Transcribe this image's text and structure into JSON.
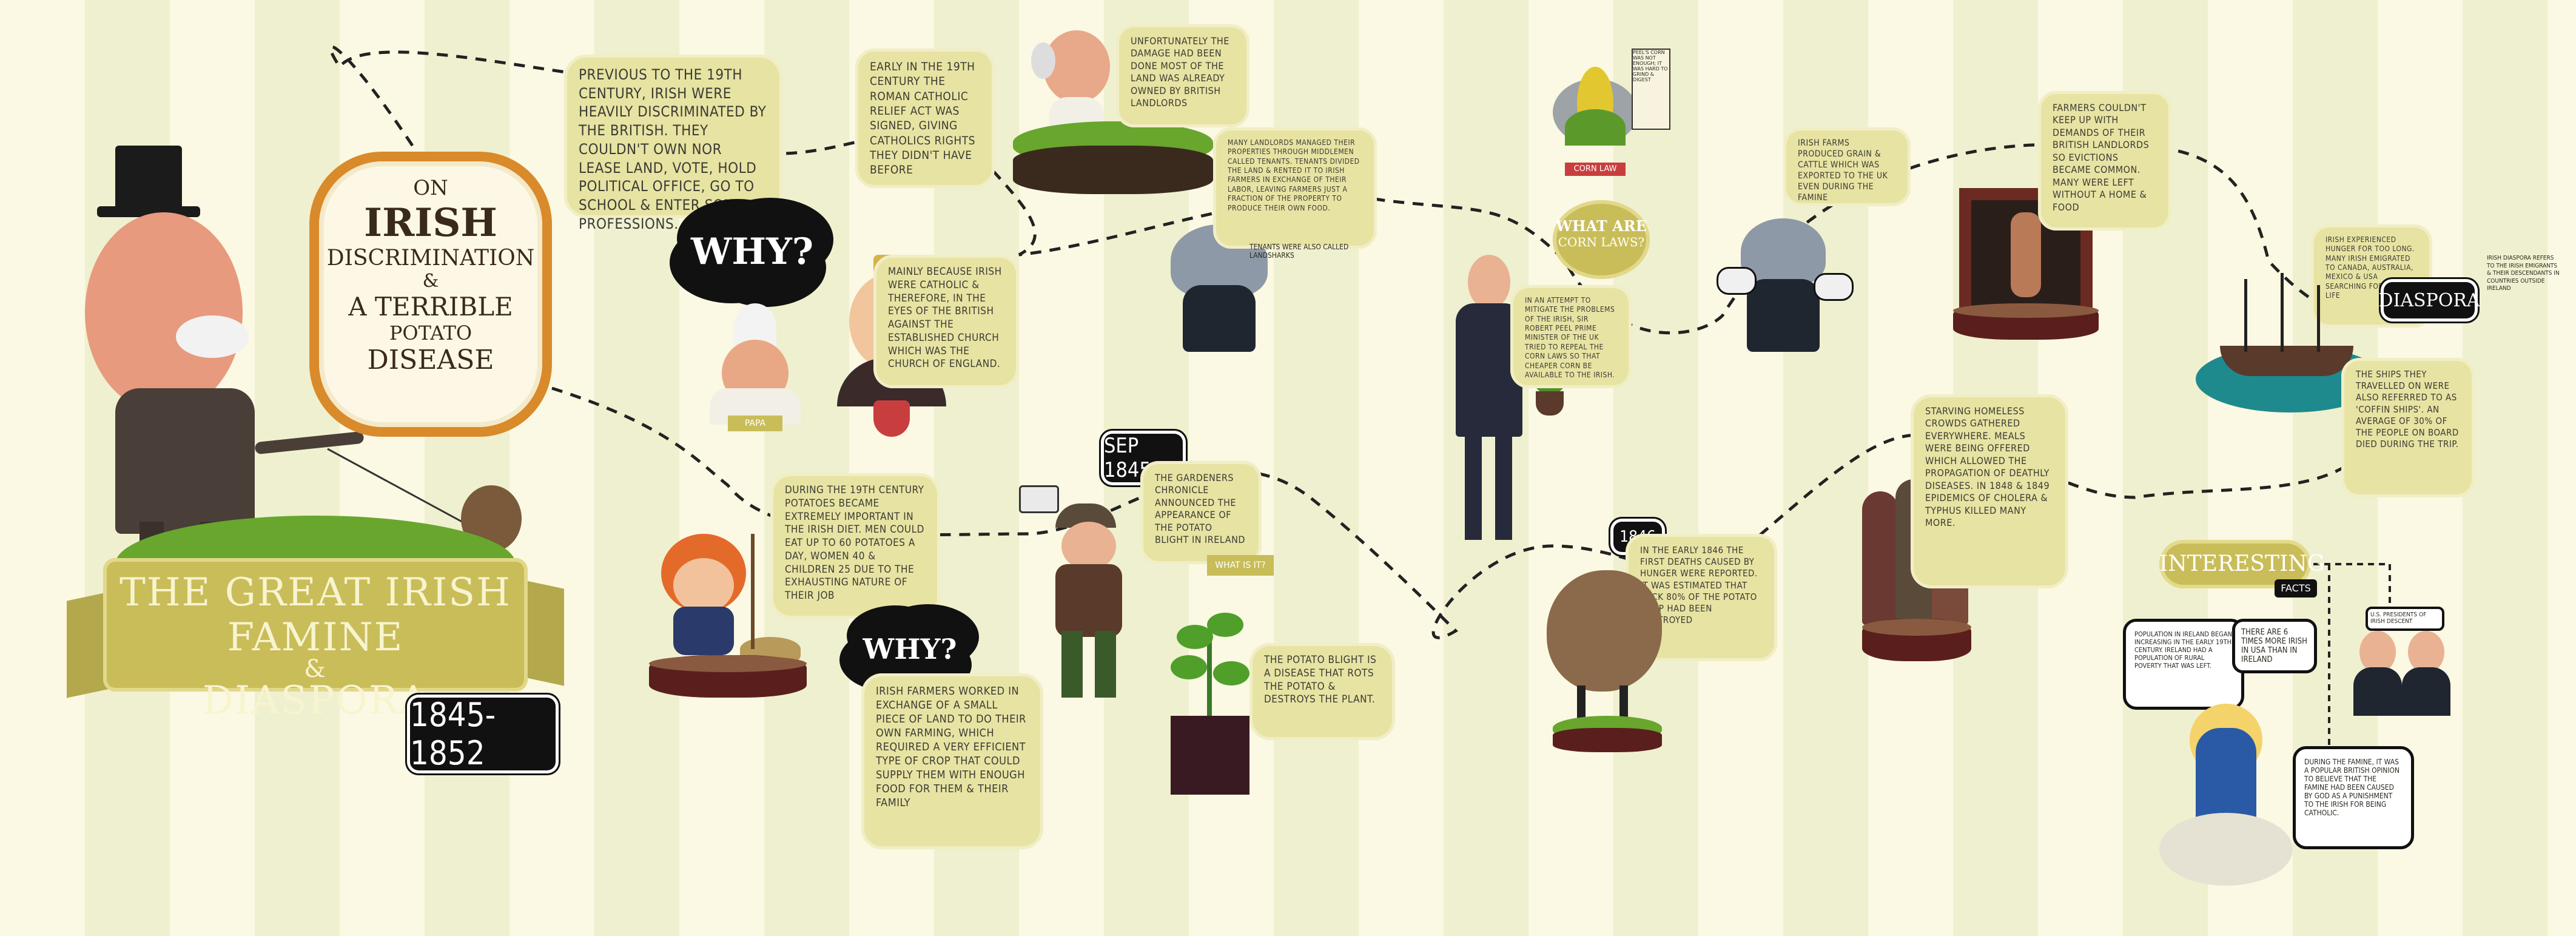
{
  "title": {
    "line1": "THE GREAT IRISH FAMINE",
    "amp": "&",
    "line2": "DIASPORA",
    "years": "1845-1852"
  },
  "subtitle": {
    "on": "ON",
    "irish": "IRISH",
    "discrimination": "DISCRIMINATION",
    "amp": "&",
    "a_terrible": "A TERRIBLE",
    "potato": "POTATO",
    "disease": "DISEASE"
  },
  "why1": "WHY?",
  "why2": "WHY?",
  "pope_label": "PAPA",
  "notes": {
    "previous": "PREVIOUS TO THE 19TH CENTURY, IRISH WERE HEAVILY DISCRIMINATED BY THE BRITISH. THEY COULDN'T OWN NOR LEASE LAND, VOTE, HOLD POLITICAL OFFICE, GO TO SCHOOL & ENTER SOME PROFESSIONS.",
    "early": "EARLY IN THE 19TH CENTURY THE ROMAN CATHOLIC RELIEF ACT WAS SIGNED, GIVING CATHOLICS RIGHTS THEY DIDN'T HAVE BEFORE",
    "mainly": "MAINLY BECAUSE IRISH WERE CATHOLIC & THEREFORE, IN THE EYES OF THE BRITISH AGAINST THE ESTABLISHED CHURCH WHICH WAS THE CHURCH OF ENGLAND.",
    "unfortunately": "UNFORTUNATELY THE DAMAGE HAD BEEN DONE MOST OF THE LAND WAS ALREADY OWNED BY BRITISH LANDLORDS",
    "many_landlords": "MANY LANDLORDS MANAGED THEIR PROPERTIES THROUGH MIDDLEMEN CALLED TENANTS. TENANTS DIVIDED THE LAND & RENTED IT TO IRISH FARMERS IN EXCHANGE OF THEIR LABOR, LEAVING FARMERS JUST A FRACTION OF THE PROPERTY TO PRODUCE THEIR OWN FOOD.",
    "tenants_sharks": "TENANTS WERE ALSO CALLED LANDSHARKS",
    "potatoes": "DURING THE 19TH CENTURY POTATOES BECAME EXTREMELY IMPORTANT IN THE IRISH DIET. MEN COULD EAT UP TO 60 POTATOES A DAY, WOMEN 40 & CHILDREN 25 DUE TO THE EXHAUSTING NATURE OF THEIR JOB",
    "farmers_worked": "IRISH FARMERS WORKED IN EXCHANGE OF A SMALL PIECE OF LAND TO DO THEIR OWN FARMING, WHICH REQUIRED A VERY EFFICIENT TYPE OF CROP THAT COULD SUPPLY THEM WITH ENOUGH FOOD FOR THEM & THEIR FAMILY",
    "chronicle": "THE GARDENERS CHRONICLE ANNOUNCED THE APPEARANCE OF THE POTATO BLIGHT IN IRELAND",
    "blight": "THE POTATO BLIGHT IS A DISEASE THAT ROTS THE POTATO & DESTROYS THE PLANT.",
    "attempt": "IN AN ATTEMPT TO MITIGATE THE PROBLEMS OF THE IRISH, SIR ROBERT PEEL PRIME MINISTER OF THE UK TRIED TO REPEAL THE CORN LAWS SO THAT CHEAPER CORN BE AVAILABLE TO THE IRISH.",
    "farms_produced": "IRISH FARMS PRODUCED GRAIN & CATTLE WHICH WAS EXPORTED TO THE UK EVEN DURING THE FAMINE",
    "farmers_couldnt": "FARMERS COULDN'T KEEP UP WITH DEMANDS OF THEIR BRITISH LANDLORDS SO EVICTIONS BECAME COMMON. MANY WERE LEFT WITHOUT A HOME & FOOD",
    "deaths_1846": "IN THE EARLY 1846 THE FIRST DEATHS CAUSED BY HUNGER WERE REPORTED. IT WAS ESTIMATED THAT BACK 80% OF THE POTATO CROP HAD BEEN DESTROYED",
    "starving": "STARVING HOMELESS CROWDS GATHERED EVERYWHERE. MEALS WERE BEING OFFERED WHICH ALLOWED THE PROPAGATION OF DEATHLY DISEASES. IN 1848 & 1849 EPIDEMICS OF CHOLERA & TYPHUS KILLED MANY MORE.",
    "emigrated": "IRISH EXPERIENCED HUNGER FOR TOO LONG. MANY IRISH EMIGRATED TO CANADA, AUSTRALIA, MEXICO & USA SEARCHING FOR A NEW LIFE",
    "ships": "THE SHIPS THEY TRAVELLED ON WERE ALSO REFERRED TO AS 'COFFIN SHIPS'. AN AVERAGE OF 30% OF THE PEOPLE ON BOARD DIED DURING THE TRIP.",
    "diaspora_def": "IRISH DIASPORA REFERS TO THE IRISH EMIGRANTS & THEIR DESCENDANTS IN COUNTRIES OUTSIDE IRELAND",
    "corn_note": "PEEL'S CORN WAS NOT ENOUGH; IT WAS HARD TO GRIND & DIGEST"
  },
  "sep_tag": "SEP 1845",
  "tag_1846": "1846",
  "banner_what_are": "WHAT ARE",
  "banner_corn_laws": "CORN LAWS?",
  "corn_ribbon": "CORN LAW",
  "chronicle_sign": "WHAT IS IT?",
  "diaspora_title": "DIASPORA",
  "interesting": {
    "title": "INTERESTING",
    "facts": "FACTS",
    "fact1": "POPULATION IN IRELAND BEGAN INCREASING IN THE EARLY 19TH CENTURY. IRELAND HAD A POPULATION OF RURAL POVERTY THAT WAS LEFT.",
    "fact2": "THERE ARE 6 TIMES MORE IRISH IN USA THAN IN IRELAND",
    "fact3": "U.S. PRESIDENTS OF IRISH DESCENT",
    "fact4": "DURING THE FAMINE, IT WAS A POPULAR BRITISH OPINION TO BELIEVE THAT THE FAMINE HAD BEEN CAUSED BY GOD AS A PUNISHMENT TO THE IRISH FOR BEING CATHOLIC."
  },
  "colors": {
    "note_bg": "#e7e3a3",
    "banner_gold": "#c9bd5a",
    "subtitle_orange": "#d98a2a",
    "ink": "#111111",
    "grass_green": "#68a62e",
    "wood_red": "#5a1f1c",
    "sea_teal": "#1e8a8e"
  }
}
